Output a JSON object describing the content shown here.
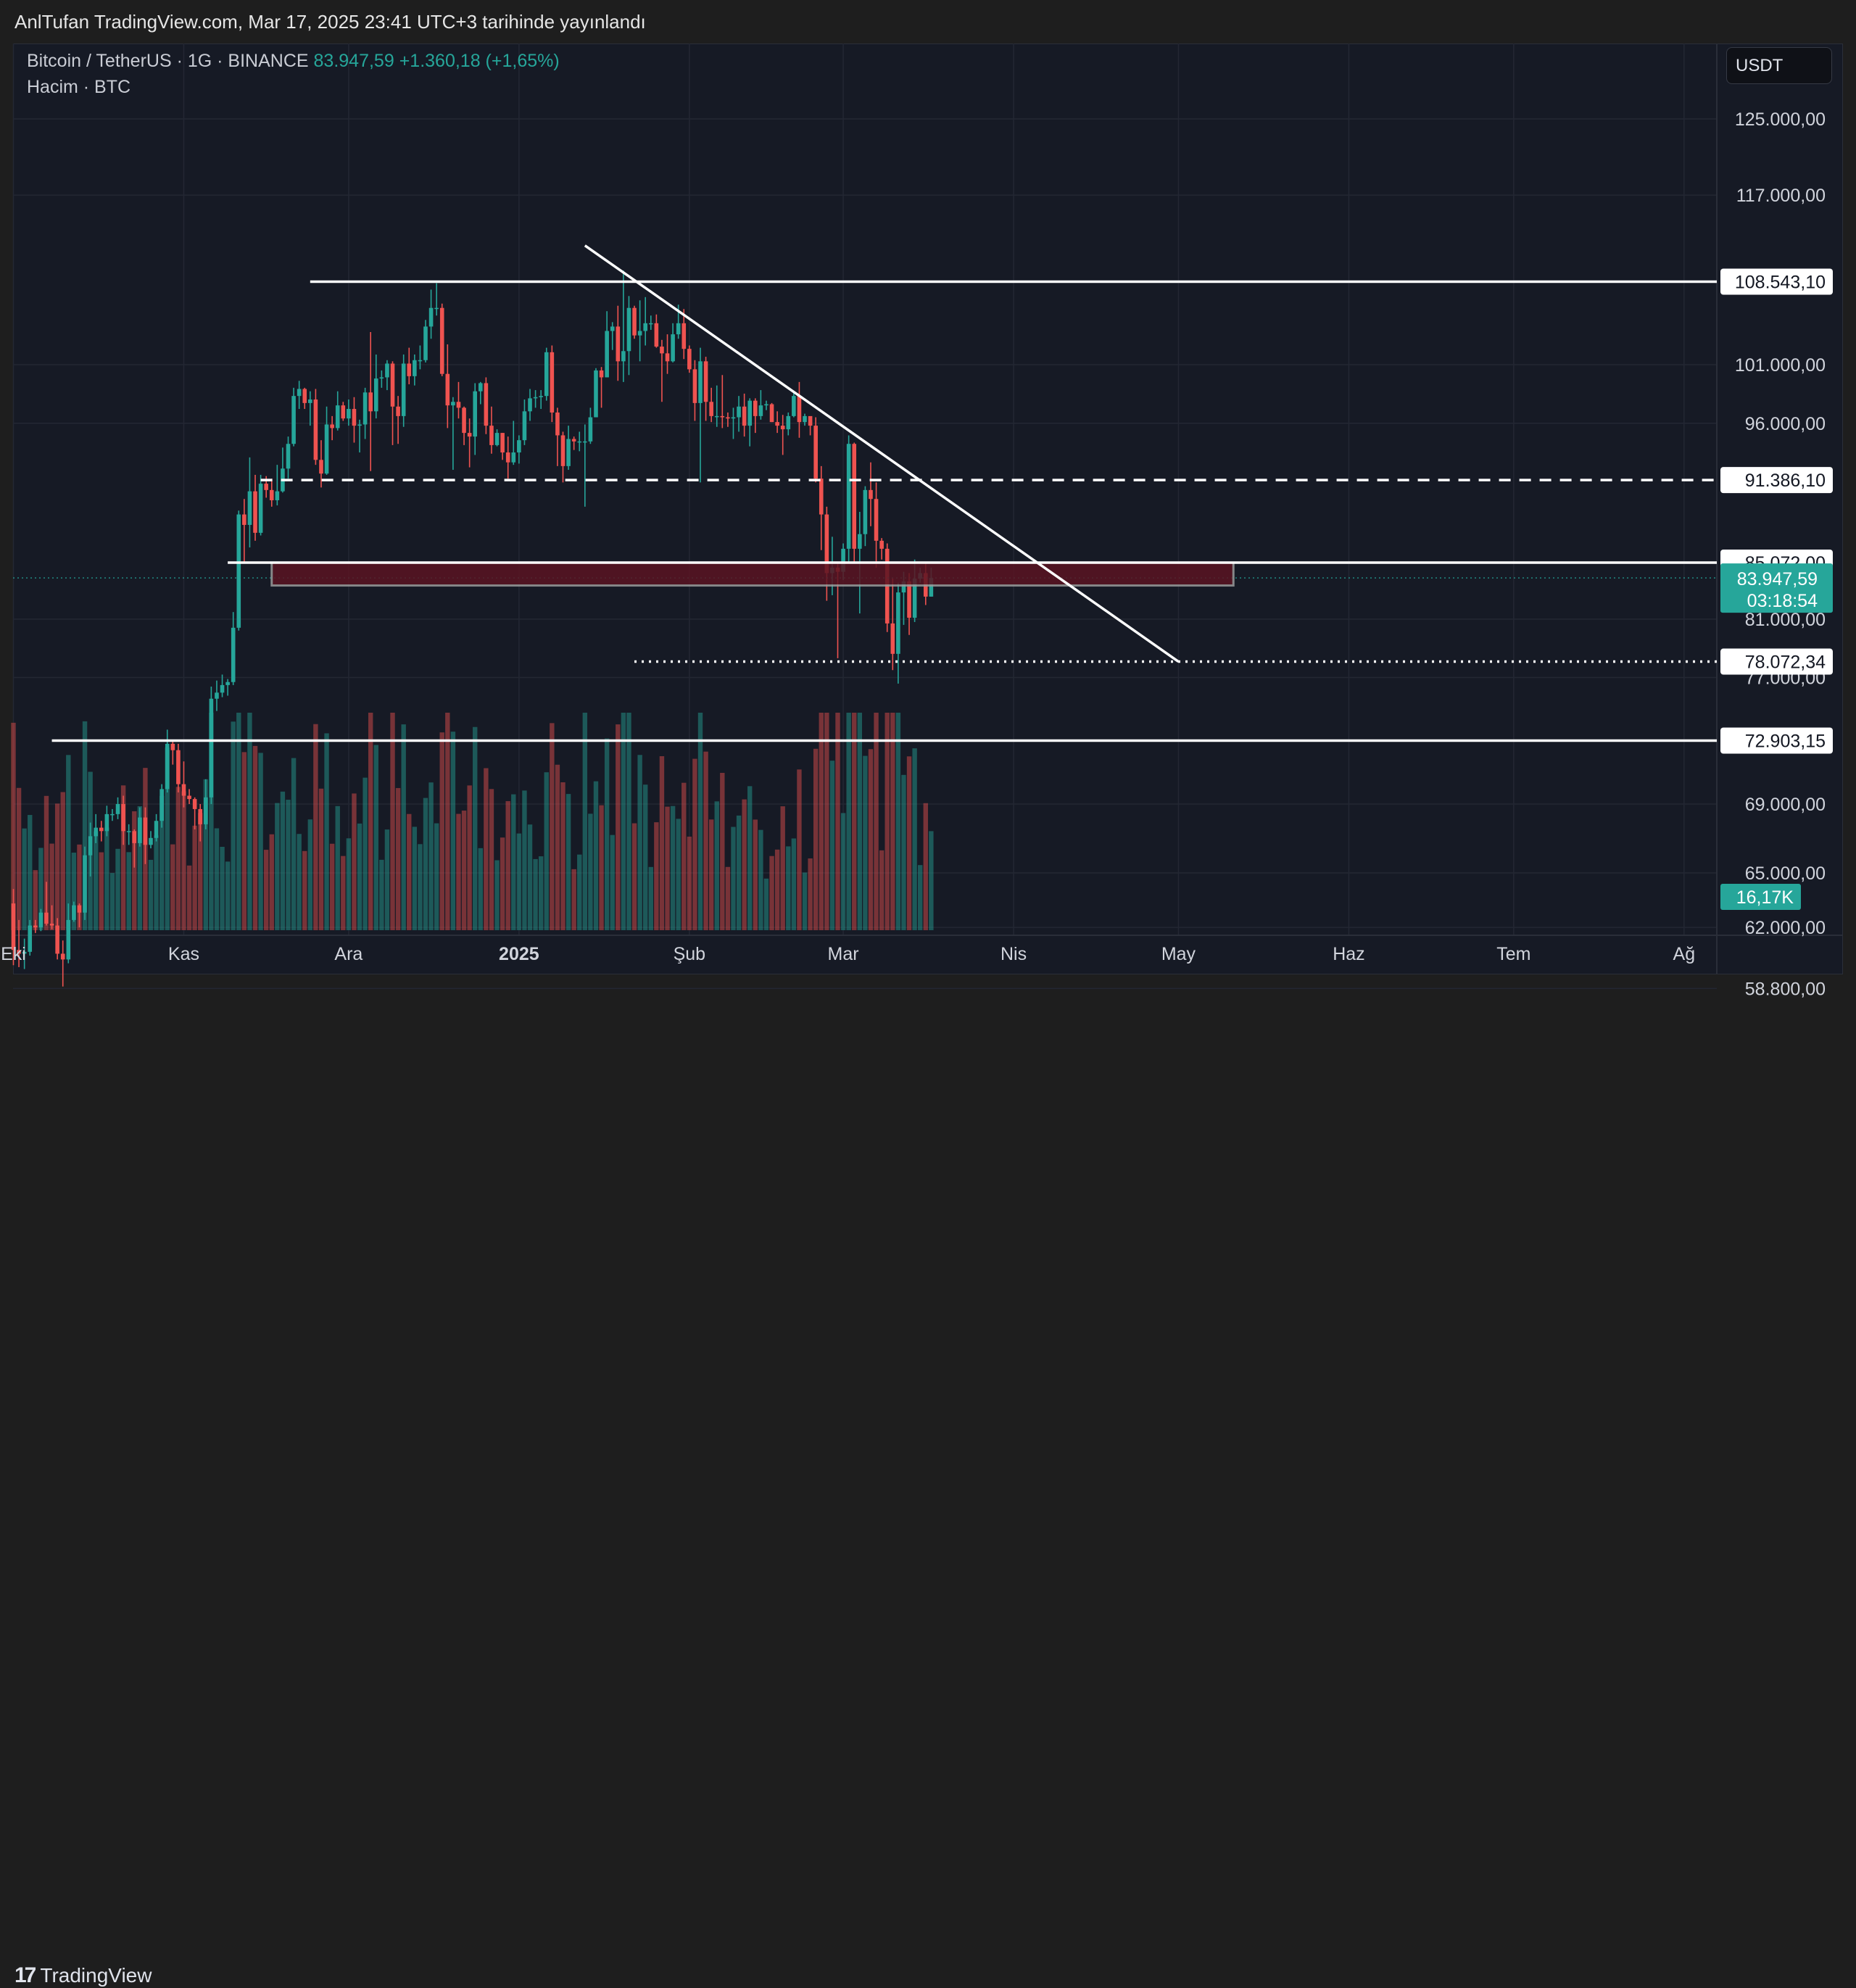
{
  "header": {
    "published_text": "AnlTufan TradingView.com, Mar 17, 2025 23:41 UTC+3 tarihinde yayınlandı"
  },
  "legend": {
    "symbol": "Bitcoin / TetherUS · 1G · BINANCE",
    "last_price": "83.947,59",
    "change": "+1.360,18 (+1,65%)",
    "volume_label": "Hacim · BTC"
  },
  "currency_button": "USDT",
  "footer": {
    "brand": "TradingView"
  },
  "colors": {
    "up": "#26a69a",
    "down": "#ef5350",
    "drawing": "#ffffff",
    "zone_fill": "#5a1422",
    "price_tag": "#26a69a"
  },
  "chart_data": {
    "type": "candlestick",
    "scale": "log",
    "y_tick_labels": [
      "125.000,00",
      "117.000,00",
      "101.000,00",
      "96.000,00",
      "81.000,00",
      "77.000,00",
      "69.000,00",
      "65.000,00",
      "62.000,00",
      "58.800,00"
    ],
    "y_ticks": [
      125000,
      117000,
      101000,
      96000,
      81000,
      77000,
      69000,
      65000,
      62000,
      58800
    ],
    "x_tick_labels": [
      "Eki",
      "Kas",
      "Ara",
      "2025",
      "Şub",
      "Mar",
      "Nis",
      "May",
      "Haz",
      "Tem",
      "Ağ"
    ],
    "x_ticks": [
      "2024-10-01",
      "2024-11-01",
      "2024-12-01",
      "2025-01-01",
      "2025-02-01",
      "2025-03-01",
      "2025-04-01",
      "2025-05-01",
      "2025-06-01",
      "2025-07-01",
      "2025-08-01"
    ],
    "horizontal_levels": [
      {
        "label": "108.543,10",
        "value": 108543.1,
        "style": "solid",
        "from": "2024-11-24"
      },
      {
        "label": "91.386,10",
        "value": 91386.1,
        "style": "dashed",
        "from": "2024-11-15"
      },
      {
        "label": "85.072,00",
        "value": 85072.0,
        "style": "solid",
        "from": "2024-11-09"
      },
      {
        "label": "78.072,34",
        "value": 78072.34,
        "style": "dotted",
        "from": "2025-01-22"
      },
      {
        "label": "72.903,15",
        "value": 72903.15,
        "style": "solid",
        "from": "2024-10-08"
      }
    ],
    "zone": {
      "top": 85072,
      "bottom": 83400,
      "from": "2024-11-17",
      "to": "2025-05-11"
    },
    "trendline": {
      "from": {
        "date": "2025-01-13",
        "value": 112000
      },
      "to": {
        "date": "2025-05-01",
        "value": 78072
      }
    },
    "current_price": {
      "label": "83.947,59",
      "countdown": "03:18:54",
      "value": 83947.59
    },
    "volume": {
      "last_label": "16,17K"
    },
    "candles": [
      [
        "2024-10-01",
        63300,
        64100,
        60000,
        60800
      ],
      [
        "2024-10-02",
        60800,
        62400,
        59900,
        60600
      ],
      [
        "2024-10-03",
        60600,
        61400,
        59800,
        60700
      ],
      [
        "2024-10-04",
        60700,
        62400,
        60500,
        62100
      ],
      [
        "2024-10-05",
        62100,
        62400,
        61700,
        62000
      ],
      [
        "2024-10-06",
        62000,
        63000,
        61800,
        62800
      ],
      [
        "2024-10-07",
        62800,
        64500,
        62100,
        62200
      ],
      [
        "2024-10-08",
        62200,
        63200,
        61900,
        62100
      ],
      [
        "2024-10-09",
        62100,
        62500,
        60300,
        60600
      ],
      [
        "2024-10-10",
        60600,
        61300,
        58900,
        60300
      ],
      [
        "2024-10-11",
        60300,
        63300,
        60100,
        62400
      ],
      [
        "2024-10-12",
        62400,
        63400,
        62300,
        63200
      ],
      [
        "2024-10-13",
        63200,
        63300,
        62000,
        62800
      ],
      [
        "2024-10-14",
        62800,
        66500,
        62400,
        66000
      ],
      [
        "2024-10-15",
        66000,
        67900,
        64800,
        67100
      ],
      [
        "2024-10-16",
        67100,
        68400,
        66700,
        67600
      ],
      [
        "2024-10-17",
        67600,
        68000,
        66800,
        67400
      ],
      [
        "2024-10-18",
        67400,
        68900,
        67100,
        68400
      ],
      [
        "2024-10-19",
        68400,
        68700,
        68000,
        68400
      ],
      [
        "2024-10-20",
        68400,
        69400,
        68100,
        69000
      ],
      [
        "2024-10-21",
        69000,
        69500,
        66600,
        67400
      ],
      [
        "2024-10-22",
        67400,
        67800,
        66600,
        67400
      ],
      [
        "2024-10-23",
        67400,
        67500,
        65300,
        66700
      ],
      [
        "2024-10-24",
        66700,
        68800,
        66500,
        68200
      ],
      [
        "2024-10-25",
        68200,
        68800,
        65500,
        66600
      ],
      [
        "2024-10-26",
        66600,
        67400,
        66400,
        67000
      ],
      [
        "2024-10-27",
        67000,
        68400,
        66800,
        68000
      ],
      [
        "2024-10-28",
        68000,
        70200,
        67600,
        69900
      ],
      [
        "2024-10-29",
        69900,
        73600,
        69700,
        72700
      ],
      [
        "2024-10-30",
        72700,
        72900,
        71400,
        72300
      ],
      [
        "2024-10-31",
        72300,
        72700,
        69700,
        70200
      ],
      [
        "2024-11-01",
        70200,
        71600,
        68800,
        69500
      ],
      [
        "2024-11-02",
        69500,
        69900,
        69000,
        69300
      ],
      [
        "2024-11-03",
        69300,
        69400,
        67500,
        68700
      ],
      [
        "2024-11-04",
        68700,
        69000,
        66800,
        67800
      ],
      [
        "2024-11-05",
        67800,
        70500,
        67500,
        69400
      ],
      [
        "2024-11-06",
        69400,
        76400,
        69000,
        75600
      ],
      [
        "2024-11-07",
        75600,
        76800,
        74800,
        76000
      ],
      [
        "2024-11-08",
        76000,
        77200,
        75700,
        76500
      ],
      [
        "2024-11-09",
        76500,
        76900,
        75800,
        76700
      ],
      [
        "2024-11-10",
        76700,
        81500,
        76500,
        80400
      ],
      [
        "2024-11-11",
        80400,
        89000,
        80200,
        88700
      ],
      [
        "2024-11-12",
        88700,
        89900,
        85100,
        87900
      ],
      [
        "2024-11-13",
        87900,
        93200,
        86200,
        90500
      ],
      [
        "2024-11-14",
        90500,
        91800,
        86700,
        87300
      ],
      [
        "2024-11-15",
        87300,
        91800,
        87100,
        91100
      ],
      [
        "2024-11-16",
        91100,
        91700,
        90000,
        90600
      ],
      [
        "2024-11-17",
        90600,
        91500,
        89300,
        89800
      ],
      [
        "2024-11-18",
        89800,
        92600,
        89400,
        90500
      ],
      [
        "2024-11-19",
        90500,
        94000,
        90400,
        92300
      ],
      [
        "2024-11-20",
        92300,
        94900,
        91500,
        94300
      ],
      [
        "2024-11-21",
        94300,
        99000,
        94100,
        98300
      ],
      [
        "2024-11-22",
        98300,
        99600,
        97200,
        98900
      ],
      [
        "2024-11-23",
        98900,
        99000,
        97200,
        97700
      ],
      [
        "2024-11-24",
        97700,
        98700,
        95800,
        98000
      ],
      [
        "2024-11-25",
        98000,
        98900,
        92600,
        93000
      ],
      [
        "2024-11-26",
        93000,
        94600,
        90800,
        91900
      ],
      [
        "2024-11-27",
        91900,
        97400,
        91800,
        95900
      ],
      [
        "2024-11-28",
        95900,
        96600,
        94600,
        95600
      ],
      [
        "2024-11-29",
        95600,
        98700,
        95400,
        97500
      ],
      [
        "2024-11-30",
        97500,
        97800,
        96200,
        96400
      ],
      [
        "2024-12-01",
        96400,
        98000,
        95800,
        97200
      ],
      [
        "2024-12-02",
        97200,
        98200,
        94400,
        95800
      ],
      [
        "2024-12-03",
        95800,
        96300,
        93600,
        95900
      ],
      [
        "2024-12-04",
        95900,
        99000,
        94700,
        98600
      ],
      [
        "2024-12-05",
        98600,
        103900,
        92100,
        97000
      ],
      [
        "2024-12-06",
        97000,
        101900,
        96400,
        99800
      ],
      [
        "2024-12-07",
        99800,
        100500,
        99000,
        99900
      ],
      [
        "2024-12-08",
        99900,
        101400,
        98800,
        101100
      ],
      [
        "2024-12-09",
        101100,
        101300,
        94200,
        97400
      ],
      [
        "2024-12-10",
        97400,
        98300,
        94300,
        96600
      ],
      [
        "2024-12-11",
        96600,
        101900,
        95700,
        101100
      ],
      [
        "2024-12-12",
        101100,
        102500,
        99300,
        100000
      ],
      [
        "2024-12-13",
        100000,
        101900,
        99200,
        101400
      ],
      [
        "2024-12-14",
        101400,
        102700,
        100600,
        101400
      ],
      [
        "2024-12-15",
        101400,
        105000,
        101200,
        104400
      ],
      [
        "2024-12-16",
        104400,
        107800,
        103300,
        106100
      ],
      [
        "2024-12-17",
        106100,
        108400,
        105400,
        106100
      ],
      [
        "2024-12-18",
        106100,
        106500,
        100000,
        100200
      ],
      [
        "2024-12-19",
        100200,
        102800,
        95600,
        97500
      ],
      [
        "2024-12-20",
        97500,
        98200,
        92200,
        97800
      ],
      [
        "2024-12-21",
        97800,
        99500,
        96400,
        97300
      ],
      [
        "2024-12-22",
        97300,
        97400,
        94200,
        95200
      ],
      [
        "2024-12-23",
        95200,
        96400,
        92400,
        94900
      ],
      [
        "2024-12-24",
        94900,
        99400,
        93400,
        98700
      ],
      [
        "2024-12-25",
        98700,
        99500,
        97600,
        99400
      ],
      [
        "2024-12-26",
        99400,
        99900,
        95100,
        95800
      ],
      [
        "2024-12-27",
        95800,
        97400,
        93500,
        94200
      ],
      [
        "2024-12-28",
        94200,
        95500,
        94100,
        95200
      ],
      [
        "2024-12-29",
        95200,
        95200,
        93000,
        93600
      ],
      [
        "2024-12-30",
        93600,
        94900,
        91500,
        92800
      ],
      [
        "2024-12-31",
        92800,
        96200,
        92600,
        93600
      ],
      [
        "2025-01-01",
        93600,
        95000,
        92700,
        94600
      ],
      [
        "2025-01-02",
        94600,
        98000,
        94200,
        97000
      ],
      [
        "2025-01-03",
        97000,
        98900,
        96200,
        98100
      ],
      [
        "2025-01-04",
        98100,
        98800,
        97300,
        98200
      ],
      [
        "2025-01-05",
        98200,
        98800,
        97200,
        98300
      ],
      [
        "2025-01-06",
        98300,
        102500,
        97900,
        102100
      ],
      [
        "2025-01-07",
        102100,
        102700,
        96100,
        96900
      ],
      [
        "2025-01-08",
        96900,
        97300,
        92500,
        95000
      ],
      [
        "2025-01-09",
        95000,
        95300,
        91200,
        92500
      ],
      [
        "2025-01-10",
        92500,
        95800,
        92200,
        94700
      ],
      [
        "2025-01-11",
        94700,
        94900,
        93800,
        94500
      ],
      [
        "2025-01-12",
        94500,
        95300,
        93700,
        94500
      ],
      [
        "2025-01-13",
        94500,
        95900,
        89300,
        94500
      ],
      [
        "2025-01-14",
        94500,
        97300,
        94300,
        96500
      ],
      [
        "2025-01-15",
        96500,
        100700,
        96500,
        100500
      ],
      [
        "2025-01-16",
        100500,
        100800,
        97300,
        99900
      ],
      [
        "2025-01-17",
        99900,
        105800,
        99900,
        104000
      ],
      [
        "2025-01-18",
        104000,
        104800,
        102300,
        104400
      ],
      [
        "2025-01-19",
        104400,
        106300,
        99600,
        101300
      ],
      [
        "2025-01-20",
        101300,
        109600,
        99500,
        102200
      ],
      [
        "2025-01-21",
        102200,
        107200,
        100100,
        106100
      ],
      [
        "2025-01-22",
        106100,
        106300,
        103300,
        103600
      ],
      [
        "2025-01-23",
        103600,
        106800,
        101300,
        104000
      ],
      [
        "2025-01-24",
        104000,
        107100,
        102700,
        104700
      ],
      [
        "2025-01-25",
        104700,
        105400,
        104100,
        104700
      ],
      [
        "2025-01-26",
        104700,
        105500,
        102500,
        102600
      ],
      [
        "2025-01-27",
        102600,
        103200,
        97800,
        102000
      ],
      [
        "2025-01-28",
        102000,
        103700,
        100200,
        101300
      ],
      [
        "2025-01-29",
        101300,
        104700,
        101200,
        103700
      ],
      [
        "2025-01-30",
        103700,
        106400,
        103300,
        104700
      ],
      [
        "2025-01-31",
        104700,
        106000,
        101500,
        102400
      ],
      [
        "2025-02-01",
        102400,
        102700,
        100300,
        100600
      ],
      [
        "2025-02-02",
        100600,
        101400,
        96200,
        97700
      ],
      [
        "2025-02-03",
        97700,
        102500,
        91200,
        101300
      ],
      [
        "2025-02-04",
        101300,
        101700,
        96200,
        97800
      ],
      [
        "2025-02-05",
        97800,
        99000,
        96100,
        96600
      ],
      [
        "2025-02-06",
        96600,
        99200,
        95700,
        96600
      ],
      [
        "2025-02-07",
        96600,
        100100,
        95600,
        96500
      ],
      [
        "2025-02-08",
        96500,
        96900,
        95700,
        96400
      ],
      [
        "2025-02-09",
        96400,
        97300,
        94700,
        96500
      ],
      [
        "2025-02-10",
        96500,
        98300,
        95300,
        97400
      ],
      [
        "2025-02-11",
        97400,
        98500,
        94900,
        95800
      ],
      [
        "2025-02-12",
        95800,
        98100,
        94100,
        97900
      ],
      [
        "2025-02-13",
        97900,
        98100,
        95200,
        96600
      ],
      [
        "2025-02-14",
        96600,
        98800,
        96300,
        97500
      ],
      [
        "2025-02-15",
        97500,
        97900,
        97100,
        97600
      ],
      [
        "2025-02-16",
        97600,
        97700,
        96100,
        96100
      ],
      [
        "2025-02-17",
        96100,
        97000,
        95200,
        95800
      ],
      [
        "2025-02-18",
        95800,
        96700,
        93400,
        95500
      ],
      [
        "2025-02-19",
        95500,
        96900,
        95000,
        96600
      ],
      [
        "2025-02-20",
        96600,
        98700,
        96500,
        98300
      ],
      [
        "2025-02-21",
        98300,
        99500,
        94800,
        96100
      ],
      [
        "2025-02-22",
        96100,
        96800,
        95800,
        96600
      ],
      [
        "2025-02-23",
        96600,
        96500,
        95000,
        95800
      ],
      [
        "2025-02-24",
        95800,
        96500,
        91200,
        91500
      ],
      [
        "2025-02-25",
        91500,
        92500,
        86000,
        88700
      ],
      [
        "2025-02-26",
        88700,
        89300,
        82300,
        84300
      ],
      [
        "2025-02-27",
        84300,
        87000,
        82700,
        84700
      ],
      [
        "2025-02-28",
        84700,
        85100,
        78300,
        84400
      ],
      [
        "2025-03-01",
        84400,
        86500,
        83800,
        86100
      ],
      [
        "2025-03-02",
        86100,
        95000,
        85100,
        94300
      ],
      [
        "2025-03-03",
        94300,
        94400,
        85100,
        86100
      ],
      [
        "2025-03-04",
        86100,
        88900,
        81400,
        87200
      ],
      [
        "2025-03-05",
        87200,
        90900,
        86300,
        90600
      ],
      [
        "2025-03-06",
        90600,
        92800,
        87800,
        89900
      ],
      [
        "2025-03-07",
        89900,
        91200,
        84700,
        86700
      ],
      [
        "2025-03-08",
        86700,
        86900,
        85300,
        86100
      ],
      [
        "2025-03-09",
        86100,
        86500,
        80100,
        80700
      ],
      [
        "2025-03-10",
        80700,
        83900,
        77500,
        78600
      ],
      [
        "2025-03-11",
        78600,
        83600,
        76600,
        82900
      ],
      [
        "2025-03-12",
        82900,
        84400,
        80600,
        83700
      ],
      [
        "2025-03-13",
        83700,
        84300,
        79900,
        81100
      ],
      [
        "2025-03-14",
        81100,
        85300,
        80800,
        83900
      ],
      [
        "2025-03-15",
        83900,
        84700,
        83600,
        84300
      ],
      [
        "2025-03-16",
        84300,
        85000,
        82000,
        82600
      ],
      [
        "2025-03-17",
        82600,
        84700,
        82600,
        83947.59
      ]
    ]
  }
}
